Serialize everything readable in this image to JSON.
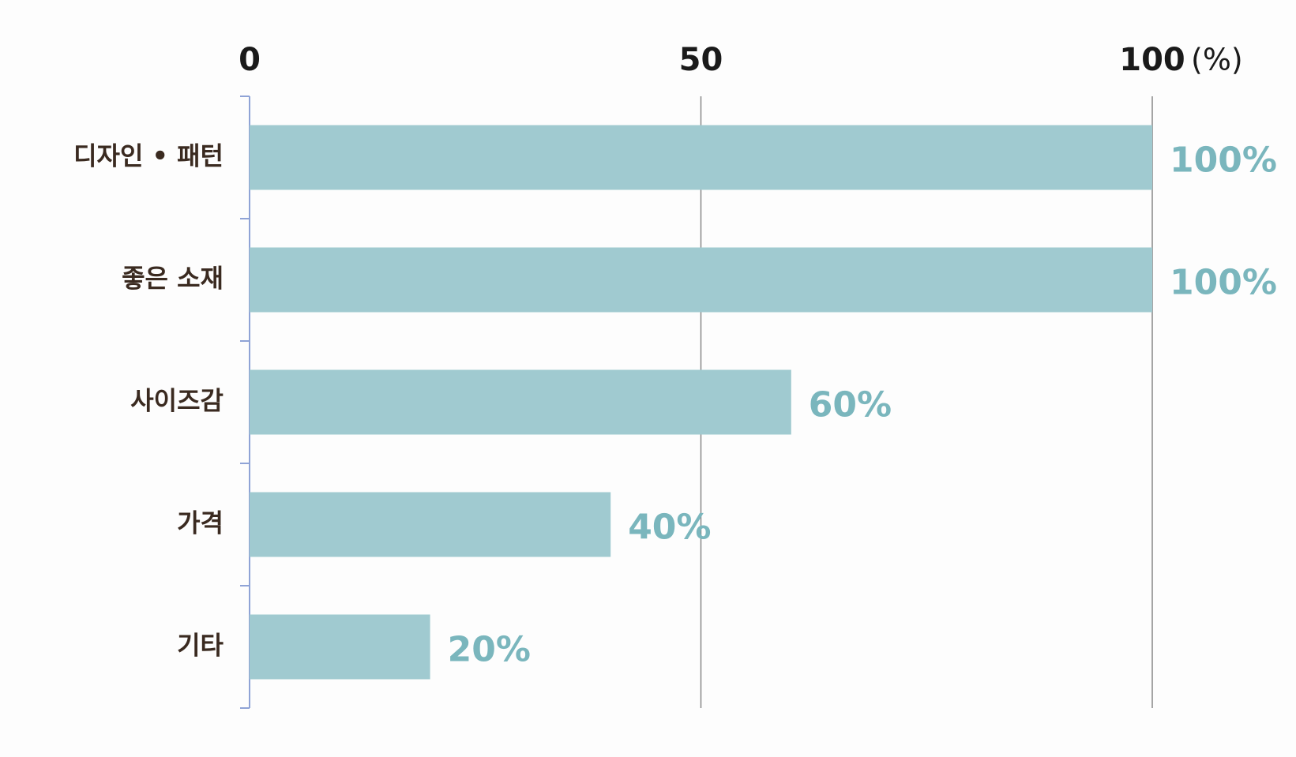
{
  "chart_data": {
    "type": "bar",
    "orientation": "horizontal",
    "categories": [
      "디자인 • 패턴",
      "좋은 소재",
      "사이즈감",
      "가격",
      "기타"
    ],
    "values": [
      100,
      100,
      60,
      40,
      20
    ],
    "value_labels": [
      "100%",
      "100%",
      "60%",
      "40%",
      "20%"
    ],
    "color": "#a0cad0",
    "xlim": [
      0,
      100
    ],
    "xticks": [
      0,
      50,
      100
    ],
    "x_unit": "(%)",
    "grid": true
  }
}
